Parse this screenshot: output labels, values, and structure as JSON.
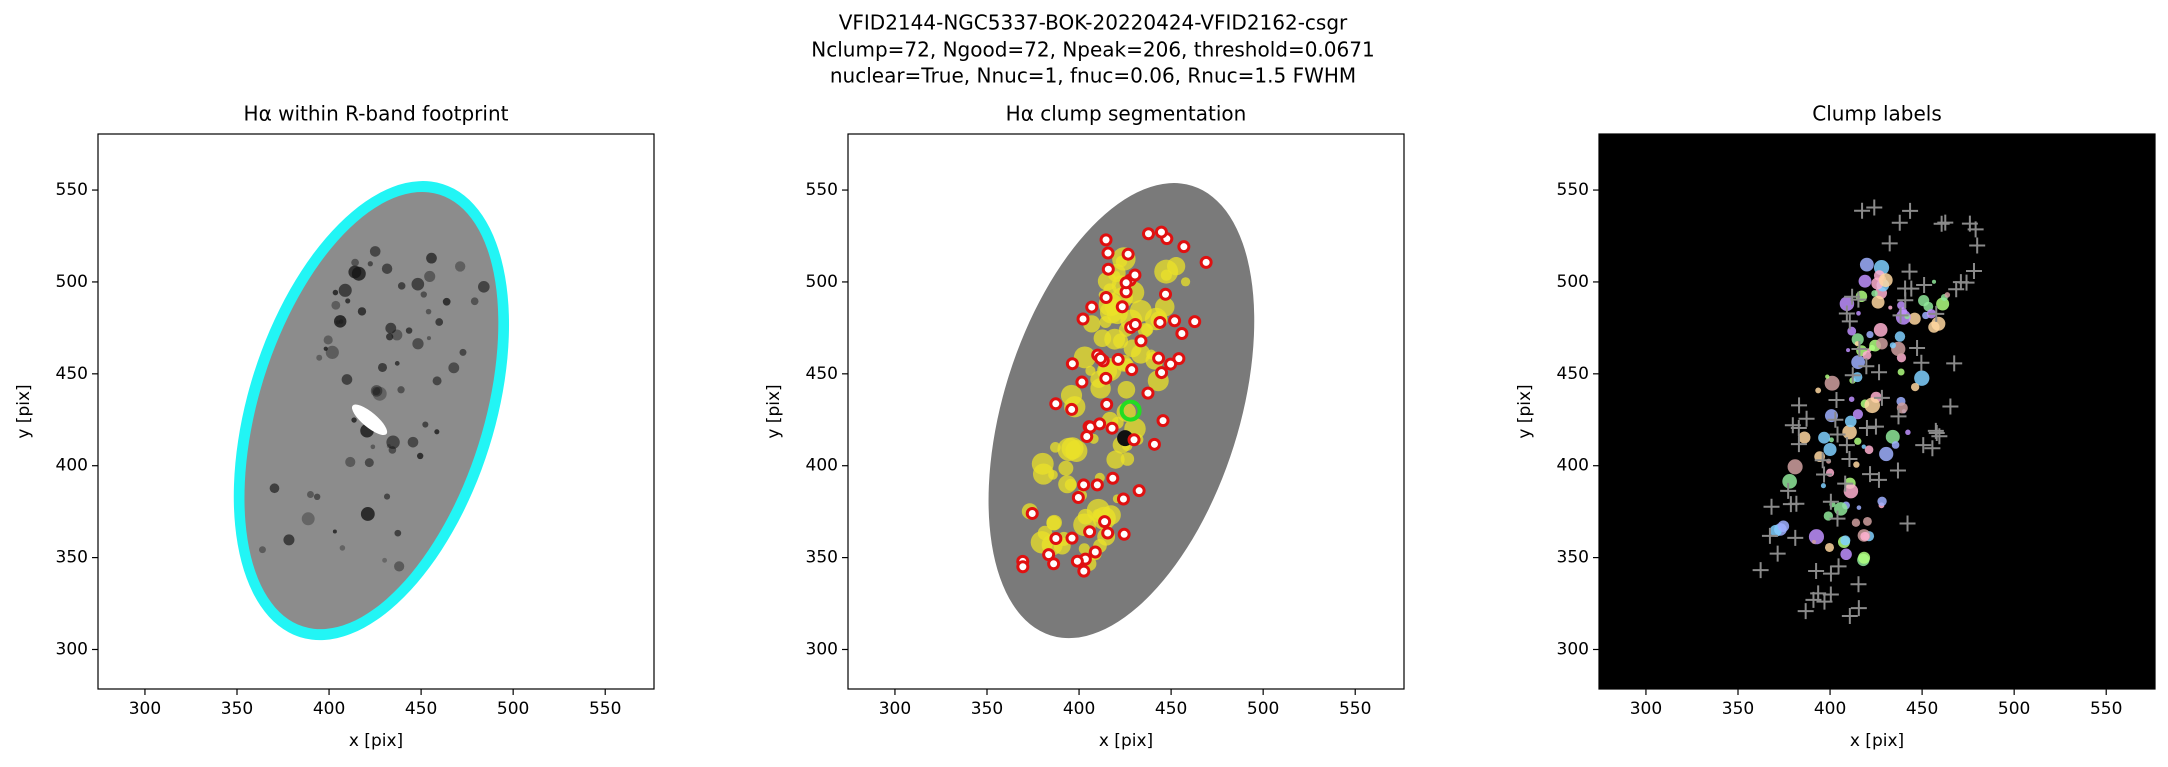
{
  "title": [
    "VFID2144-NGC5337-BOK-20220424-VFID2162-csgr",
    "Nclump=72, Ngood=72, Npeak=206, threshold=0.0671",
    "nuclear=True, Nnuc=1, fnuc=0.06, Rnuc=1.5 FWHM"
  ],
  "chart_data": [
    {
      "type": "image",
      "title": "Hα within R-band footprint",
      "xlabel": "x [pix]",
      "ylabel": "y [pix]",
      "xlim": [
        274.5,
        576.5
      ],
      "ylim": [
        278.5,
        580.5
      ],
      "xticks": [
        300,
        350,
        400,
        450,
        500,
        550
      ],
      "yticks": [
        300,
        350,
        400,
        450,
        500,
        550
      ]
    },
    {
      "type": "image",
      "title": "Hα clump segmentation",
      "xlabel": "x [pix]",
      "ylabel": "y [pix]",
      "xlim": [
        274.5,
        576.5
      ],
      "ylim": [
        278.5,
        580.5
      ],
      "xticks": [
        300,
        350,
        400,
        450,
        500,
        550
      ],
      "yticks": [
        300,
        350,
        400,
        450,
        500,
        550
      ]
    },
    {
      "type": "image",
      "title": "Clump labels",
      "xlabel": "x [pix]",
      "ylabel": "y [pix]",
      "xlim": [
        274.5,
        576.5
      ],
      "ylim": [
        278.5,
        580.5
      ],
      "xticks": [
        300,
        350,
        400,
        450,
        500,
        550
      ],
      "yticks": [
        300,
        350,
        400,
        450,
        500,
        550
      ]
    }
  ]
}
